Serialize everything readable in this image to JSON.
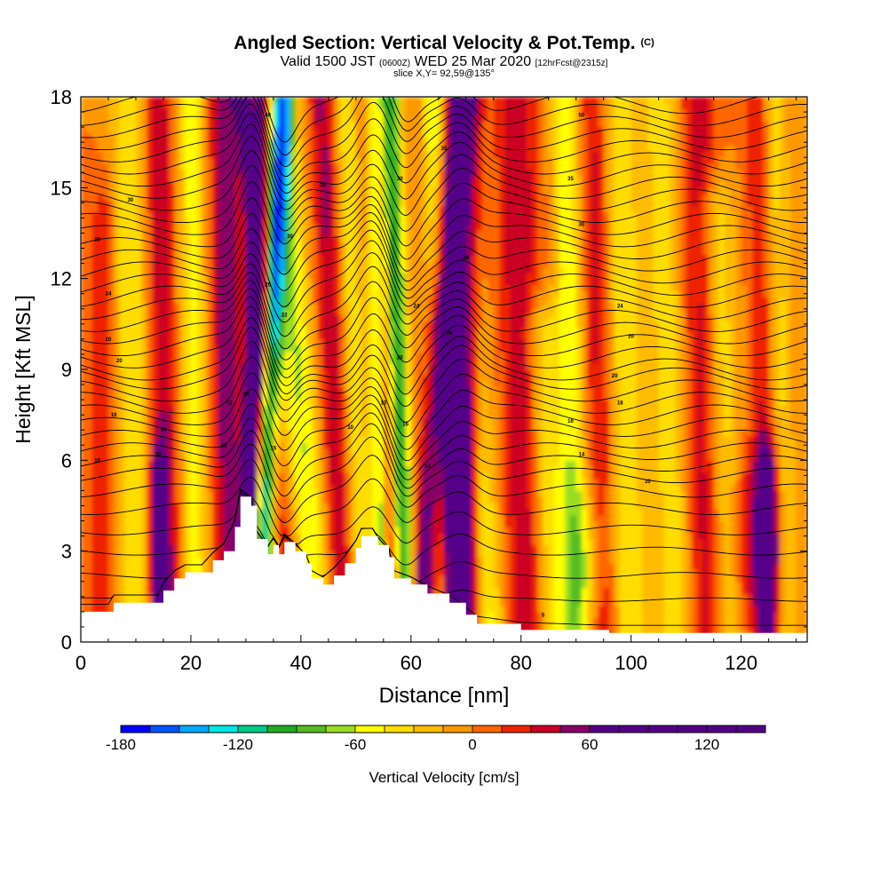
{
  "header": {
    "title_main": "Angled Section: Vertical Velocity & Pot.Temp.",
    "title_unit": "(C)",
    "valid_prefix": "Valid 1500 JST",
    "valid_utc": "(0600Z)",
    "valid_date": "WED 25 Mar 2020",
    "valid_fcst": "[12hrFcst@2315z]",
    "slice": "slice X,Y= 92,59@135°"
  },
  "chart_data": {
    "type": "heatmap",
    "xlabel": "Distance [nm]",
    "ylabel": "Height [Kft MSL]",
    "xlim": [
      0,
      132
    ],
    "ylim": [
      0,
      18
    ],
    "xticks": [
      0,
      20,
      40,
      60,
      80,
      100,
      120
    ],
    "yticks": [
      0,
      3,
      6,
      9,
      12,
      15,
      18
    ],
    "colorbar": {
      "label": "Vertical Velocity [cm/s]",
      "range": [
        -180,
        150
      ],
      "step": 15,
      "tick_values": [
        -180,
        -120,
        -60,
        0,
        60,
        120
      ],
      "colors": [
        "#0000ff",
        "#0055ff",
        "#00aaff",
        "#00e6e6",
        "#00cc88",
        "#22aa22",
        "#55bb22",
        "#99dd22",
        "#ffff00",
        "#ffdd00",
        "#ffbb00",
        "#ff9900",
        "#ff6600",
        "#ee2200",
        "#cc0022",
        "#880066",
        "#550088"
      ]
    },
    "terrain": {
      "x": [
        0,
        5,
        6,
        9,
        14,
        15,
        17,
        19,
        22,
        24,
        26,
        28,
        29,
        31,
        32,
        34,
        35,
        36,
        37,
        39,
        41,
        42,
        44,
        46,
        48,
        50,
        51,
        53,
        54,
        56,
        57,
        60,
        63,
        67,
        70,
        72,
        80,
        96,
        120,
        132
      ],
      "z": [
        1.0,
        1.0,
        1.3,
        1.3,
        1.3,
        1.7,
        2.1,
        2.3,
        2.3,
        2.7,
        3.0,
        3.8,
        4.8,
        4.5,
        3.4,
        2.9,
        3.2,
        2.9,
        3.3,
        3.0,
        2.6,
        2.1,
        1.9,
        2.2,
        2.6,
        3.1,
        3.5,
        3.5,
        3.2,
        2.8,
        2.1,
        1.9,
        1.6,
        1.3,
        0.9,
        0.6,
        0.4,
        0.3,
        0.3,
        0.3
      ]
    },
    "columns": [
      {
        "x": 4,
        "w": 2.2,
        "v": 25,
        "ztop": 14,
        "lean": 0
      },
      {
        "x": 10,
        "w": 3,
        "v": -45,
        "ztop": 18,
        "lean": -1.5
      },
      {
        "x": 14,
        "w": 1.6,
        "v": 90,
        "ztop": 6,
        "lean": 0
      },
      {
        "x": 16,
        "w": 2.5,
        "v": 45,
        "ztop": 18,
        "lean": -2
      },
      {
        "x": 21,
        "w": 2.5,
        "v": -50,
        "ztop": 18,
        "lean": -1
      },
      {
        "x": 27,
        "w": 2.8,
        "v": 55,
        "ztop": 18,
        "lean": -1
      },
      {
        "x": 30,
        "w": 1.6,
        "v": 140,
        "ztop": 18,
        "lean": 3
      },
      {
        "x": 32,
        "w": 1.8,
        "v": -110,
        "ztop": 18,
        "lean": 5
      },
      {
        "x": 36.5,
        "w": 2.4,
        "v": -70,
        "ztop": 18,
        "lean": -4
      },
      {
        "x": 38,
        "w": 2.2,
        "v": 85,
        "ztop": 18,
        "lean": -8
      },
      {
        "x": 43,
        "w": 3,
        "v": -60,
        "ztop": 18,
        "lean": -7
      },
      {
        "x": 48,
        "w": 2.5,
        "v": 50,
        "ztop": 18,
        "lean": -4
      },
      {
        "x": 51,
        "w": 2.5,
        "v": -45,
        "ztop": 18,
        "lean": -3
      },
      {
        "x": 55,
        "w": 1.6,
        "v": -150,
        "ztop": 18,
        "lean": -2
      },
      {
        "x": 56,
        "w": 2,
        "v": 110,
        "ztop": 18,
        "lean": -3
      },
      {
        "x": 59,
        "w": 2,
        "v": -110,
        "ztop": 18,
        "lean": -3
      },
      {
        "x": 62,
        "w": 2.5,
        "v": 90,
        "ztop": 18,
        "lean": 6
      },
      {
        "x": 65.5,
        "w": 2.5,
        "v": -60,
        "ztop": 18,
        "lean": -1
      },
      {
        "x": 68,
        "w": 2.5,
        "v": 75,
        "ztop": 10,
        "lean": -2
      },
      {
        "x": 69.5,
        "w": 2.8,
        "v": 115,
        "ztop": 18,
        "lean": 0
      },
      {
        "x": 74,
        "w": 3.2,
        "v": -55,
        "ztop": 18,
        "lean": -6
      },
      {
        "x": 81,
        "w": 3.5,
        "v": 45,
        "ztop": 18,
        "lean": -2
      },
      {
        "x": 86,
        "w": 3,
        "v": -45,
        "ztop": 10,
        "lean": -4
      },
      {
        "x": 90,
        "w": 2.5,
        "v": -55,
        "ztop": 18,
        "lean": -2
      },
      {
        "x": 95,
        "w": 2.5,
        "v": 35,
        "ztop": 18,
        "lean": -2
      },
      {
        "x": 100,
        "w": 3,
        "v": -45,
        "ztop": 18,
        "lean": -2
      },
      {
        "x": 108,
        "w": 3,
        "v": -40,
        "ztop": 18,
        "lean": -3
      },
      {
        "x": 114,
        "w": 3,
        "v": 40,
        "ztop": 18,
        "lean": -2
      },
      {
        "x": 118,
        "w": 3,
        "v": -40,
        "ztop": 14,
        "lean": -3
      },
      {
        "x": 122,
        "w": 4,
        "v": 45,
        "ztop": 6,
        "lean": 0
      },
      {
        "x": 125,
        "w": 1.8,
        "v": 90,
        "ztop": 6,
        "lean": 0
      },
      {
        "x": 125,
        "w": 2.2,
        "v": 35,
        "ztop": 18,
        "lean": -2
      },
      {
        "x": 128,
        "w": 2.5,
        "v": -35,
        "ztop": 18,
        "lean": -2
      },
      {
        "x": 92,
        "w": 3.5,
        "v": -35,
        "ztop": 5,
        "lean": 0
      }
    ],
    "isentropes": {
      "base_levels": [
        0.5,
        1.4,
        2.2,
        3.0,
        3.7,
        4.4,
        5.0,
        5.5,
        5.9,
        6.3,
        6.7,
        7.1,
        7.5,
        7.9,
        8.3,
        8.7,
        9.0,
        9.4,
        9.8,
        10.2,
        10.6,
        11.0,
        11.4,
        11.8,
        12.2,
        12.6,
        13.0,
        13.4,
        13.8,
        14.2,
        14.6,
        15.0,
        15.4,
        15.8,
        16.2,
        16.6,
        17.0,
        17.4,
        17.8
      ]
    },
    "contour_labels": [
      {
        "x": 3,
        "y": 6.0,
        "text": "10"
      },
      {
        "x": 14,
        "y": 6.2,
        "text": "10"
      },
      {
        "x": 6,
        "y": 7.5,
        "text": "16"
      },
      {
        "x": 15,
        "y": 7.0,
        "text": "14"
      },
      {
        "x": 7,
        "y": 9.3,
        "text": "20"
      },
      {
        "x": 5,
        "y": 10.0,
        "text": "20"
      },
      {
        "x": 5,
        "y": 11.5,
        "text": "24"
      },
      {
        "x": 3,
        "y": 13.3,
        "text": "28"
      },
      {
        "x": 9,
        "y": 14.6,
        "text": "30"
      },
      {
        "x": 26,
        "y": 6.5,
        "text": "12"
      },
      {
        "x": 27,
        "y": 7.9,
        "text": "15"
      },
      {
        "x": 30,
        "y": 8.2,
        "text": "20"
      },
      {
        "x": 35,
        "y": 6.4,
        "text": "15"
      },
      {
        "x": 37,
        "y": 10.8,
        "text": "22"
      },
      {
        "x": 34,
        "y": 11.8,
        "text": "25"
      },
      {
        "x": 38,
        "y": 13.4,
        "text": "30"
      },
      {
        "x": 44,
        "y": 15.1,
        "text": "35"
      },
      {
        "x": 34,
        "y": 17.4,
        "text": "40"
      },
      {
        "x": 49,
        "y": 7.1,
        "text": "10"
      },
      {
        "x": 55,
        "y": 7.9,
        "text": "13"
      },
      {
        "x": 59,
        "y": 7.2,
        "text": "16"
      },
      {
        "x": 63,
        "y": 5.8,
        "text": "14"
      },
      {
        "x": 58,
        "y": 9.4,
        "text": "20"
      },
      {
        "x": 61,
        "y": 11.1,
        "text": "24"
      },
      {
        "x": 67,
        "y": 10.2,
        "text": "20"
      },
      {
        "x": 70,
        "y": 12.7,
        "text": "28"
      },
      {
        "x": 58,
        "y": 15.3,
        "text": "30"
      },
      {
        "x": 66,
        "y": 16.3,
        "text": "35"
      },
      {
        "x": 89,
        "y": 15.3,
        "text": "35"
      },
      {
        "x": 91,
        "y": 13.8,
        "text": "30"
      },
      {
        "x": 98,
        "y": 11.1,
        "text": "24"
      },
      {
        "x": 100,
        "y": 10.1,
        "text": "20"
      },
      {
        "x": 97,
        "y": 8.8,
        "text": "20"
      },
      {
        "x": 98,
        "y": 7.9,
        "text": "18"
      },
      {
        "x": 89,
        "y": 7.3,
        "text": "16"
      },
      {
        "x": 91,
        "y": 6.2,
        "text": "14"
      },
      {
        "x": 103,
        "y": 5.3,
        "text": "10"
      },
      {
        "x": 91,
        "y": 17.4,
        "text": "50"
      },
      {
        "x": 84,
        "y": 0.9,
        "text": "5"
      }
    ]
  }
}
